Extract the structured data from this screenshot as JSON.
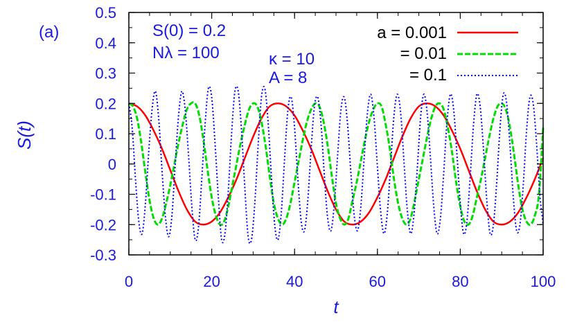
{
  "chart_data": {
    "type": "line",
    "panel_label": "(a)",
    "title": "",
    "xlabel": "t",
    "ylabel": "S(t)",
    "xlim": [
      0,
      100
    ],
    "ylim": [
      -0.3,
      0.5
    ],
    "x_ticks": [
      0,
      20,
      40,
      60,
      80,
      100
    ],
    "x_tick_labels": [
      "0",
      "20",
      "40",
      "60",
      "80",
      "100"
    ],
    "y_ticks": [
      -0.3,
      -0.2,
      -0.1,
      0,
      0.1,
      0.2,
      0.3,
      0.4,
      0.5
    ],
    "y_tick_labels": [
      "-0.3",
      "-0.2",
      "-0.1",
      "0",
      "0.1",
      "0.2",
      "0.3",
      "0.4",
      "0.5"
    ],
    "grid": false,
    "legend_position": "top-right",
    "annotations": [
      "S(0) = 0.2",
      "Nλ = 100",
      "κ = 10",
      "A = 8"
    ],
    "series": [
      {
        "name": "a = 0.001",
        "color": "#ff0000",
        "style": "solid",
        "x": [
          0,
          2,
          4,
          6,
          8,
          10,
          12,
          14,
          16,
          18,
          20,
          22,
          24,
          26,
          28,
          30,
          32,
          34,
          36,
          38,
          40,
          42,
          44,
          46,
          48,
          50,
          52,
          54,
          56,
          58,
          60,
          62,
          64,
          66,
          68,
          70,
          72,
          74,
          76,
          78,
          80,
          82,
          84,
          86,
          88,
          90,
          92,
          94,
          96,
          98,
          100
        ],
        "y": [
          0.2,
          0.19,
          0.16,
          0.11,
          0.05,
          -0.02,
          -0.09,
          -0.15,
          -0.19,
          -0.2,
          -0.19,
          -0.16,
          -0.11,
          -0.05,
          0.02,
          0.09,
          0.15,
          0.19,
          0.2,
          0.19,
          0.16,
          0.11,
          0.05,
          -0.02,
          -0.09,
          -0.15,
          -0.19,
          -0.2,
          -0.19,
          -0.16,
          -0.11,
          -0.05,
          0.02,
          0.09,
          0.15,
          0.19,
          0.2,
          0.19,
          0.16,
          0.11,
          0.05,
          -0.02,
          -0.09,
          -0.15,
          -0.19,
          -0.2,
          -0.19,
          -0.16,
          -0.11,
          -0.05,
          0.02
        ]
      },
      {
        "name": "= 0.01",
        "color": "#00dd00",
        "style": "dashed",
        "x": [
          0,
          1,
          2,
          3,
          4,
          5,
          6,
          7,
          8,
          9,
          10,
          11,
          12,
          13,
          14,
          15,
          16,
          17,
          18,
          19,
          20,
          21,
          22,
          23,
          24,
          25,
          26,
          27,
          28,
          29,
          30,
          31,
          32,
          33,
          34,
          35,
          36,
          37,
          38,
          39,
          40,
          41,
          42,
          43,
          44,
          45,
          46,
          47,
          48,
          49,
          50,
          51,
          52,
          53,
          54,
          55,
          56,
          57,
          58,
          59,
          60,
          61,
          62,
          63,
          64,
          65,
          66,
          67,
          68,
          69,
          70,
          71,
          72,
          73,
          74,
          75,
          76,
          77,
          78,
          79,
          80,
          81,
          82,
          83,
          84,
          85,
          86,
          87,
          88,
          89,
          90,
          91,
          92,
          93,
          94,
          95,
          96,
          97,
          98,
          99,
          100
        ],
        "y": [
          0.2,
          0.19,
          0.15,
          0.07,
          -0.03,
          -0.12,
          -0.18,
          -0.2,
          -0.18,
          -0.13,
          -0.07,
          0.0,
          0.07,
          0.13,
          0.18,
          0.2,
          0.2,
          0.16,
          0.08,
          -0.02,
          -0.11,
          -0.17,
          -0.2,
          -0.19,
          -0.14,
          -0.07,
          0.0,
          0.07,
          0.13,
          0.18,
          0.2,
          0.19,
          0.14,
          0.06,
          -0.04,
          -0.13,
          -0.18,
          -0.2,
          -0.18,
          -0.13,
          -0.06,
          0.01,
          0.08,
          0.14,
          0.18,
          0.2,
          0.19,
          0.14,
          0.06,
          -0.04,
          -0.13,
          -0.18,
          -0.2,
          -0.18,
          -0.12,
          -0.06,
          0.01,
          0.08,
          0.14,
          0.18,
          0.2,
          0.19,
          0.13,
          0.05,
          -0.05,
          -0.13,
          -0.18,
          -0.2,
          -0.18,
          -0.12,
          -0.05,
          0.02,
          0.09,
          0.15,
          0.19,
          0.2,
          0.18,
          0.12,
          0.04,
          -0.06,
          -0.14,
          -0.19,
          -0.2,
          -0.17,
          -0.11,
          -0.05,
          0.02,
          0.09,
          0.15,
          0.19,
          0.2,
          0.18,
          0.12,
          0.03,
          -0.07,
          -0.15,
          -0.19,
          -0.2,
          -0.17,
          -0.1,
          0.12
        ]
      },
      {
        "name": "= 0.1",
        "color": "#0000ff",
        "style": "dotted",
        "x": [
          0,
          0.8,
          1.6,
          2.4,
          3.2,
          4.0,
          4.8,
          5.6,
          6.4,
          7.2,
          8.0,
          8.8,
          9.6,
          10.4,
          11.2,
          12.0,
          12.8,
          13.6,
          14.4,
          15.2,
          16.0,
          16.8,
          17.6,
          18.4,
          19.2,
          20.0,
          20.8,
          21.6,
          22.4,
          23.2,
          24.0,
          24.8,
          25.6,
          26.4,
          27.2,
          28.0,
          28.8,
          29.6,
          30.4,
          31.2,
          32.0,
          32.8,
          33.6,
          34.4,
          35.2,
          36.0,
          36.8,
          37.6,
          38.4,
          39.2,
          40.0,
          40.8,
          41.6,
          42.4,
          43.2,
          44.0,
          44.8,
          45.6,
          46.4,
          47.2,
          48.0,
          48.8,
          49.6,
          50.4,
          51.2,
          52.0,
          52.8,
          53.6,
          54.4,
          55.2,
          56.0,
          56.8,
          57.6,
          58.4,
          59.2,
          60.0,
          60.8,
          61.6,
          62.4,
          63.2,
          64.0,
          64.8,
          65.6,
          66.4,
          67.2,
          68.0,
          68.8,
          69.6,
          70.4,
          71.2,
          72.0,
          72.8,
          73.6,
          74.4,
          75.2,
          76.0,
          76.8,
          77.6,
          78.4,
          79.2,
          80.0,
          80.8,
          81.6,
          82.4,
          83.2,
          84.0,
          84.8,
          85.6,
          86.4,
          87.2,
          88.0,
          88.8,
          89.6,
          90.4,
          91.2,
          92.0,
          92.8,
          93.6,
          94.4,
          95.2,
          96.0,
          96.8,
          97.6,
          98.4,
          99.2,
          100.0
        ],
        "y": [
          0.2,
          0.12,
          -0.05,
          -0.19,
          -0.23,
          -0.13,
          0.04,
          0.18,
          0.24,
          0.15,
          -0.02,
          -0.17,
          -0.24,
          -0.17,
          0.0,
          0.16,
          0.24,
          0.18,
          0.03,
          -0.14,
          -0.25,
          -0.21,
          -0.05,
          0.13,
          0.25,
          0.22,
          0.07,
          -0.11,
          -0.25,
          -0.23,
          -0.09,
          0.1,
          0.24,
          0.24,
          0.11,
          -0.08,
          -0.24,
          -0.25,
          -0.13,
          0.06,
          0.22,
          0.25,
          0.14,
          -0.04,
          -0.2,
          -0.25,
          -0.16,
          0.02,
          0.18,
          0.22,
          0.12,
          -0.05,
          -0.19,
          -0.22,
          -0.12,
          0.05,
          0.19,
          0.22,
          0.13,
          -0.04,
          -0.18,
          -0.22,
          -0.13,
          0.03,
          0.18,
          0.22,
          0.13,
          -0.03,
          -0.17,
          -0.22,
          -0.14,
          0.02,
          0.17,
          0.23,
          0.15,
          -0.01,
          -0.16,
          -0.23,
          -0.16,
          0.0,
          0.16,
          0.23,
          0.17,
          0.01,
          -0.15,
          -0.23,
          -0.17,
          -0.02,
          0.15,
          0.23,
          0.17,
          0.02,
          -0.14,
          -0.23,
          -0.18,
          -0.03,
          0.14,
          0.23,
          0.18,
          0.03,
          -0.13,
          -0.23,
          -0.19,
          -0.04,
          0.13,
          0.23,
          0.19,
          0.05,
          -0.12,
          -0.23,
          -0.2,
          -0.06,
          0.12,
          0.23,
          0.2,
          0.06,
          -0.11,
          -0.22,
          -0.2,
          -0.07,
          0.11,
          0.22,
          0.2,
          0.07,
          -0.1,
          -0.2
        ]
      }
    ]
  }
}
